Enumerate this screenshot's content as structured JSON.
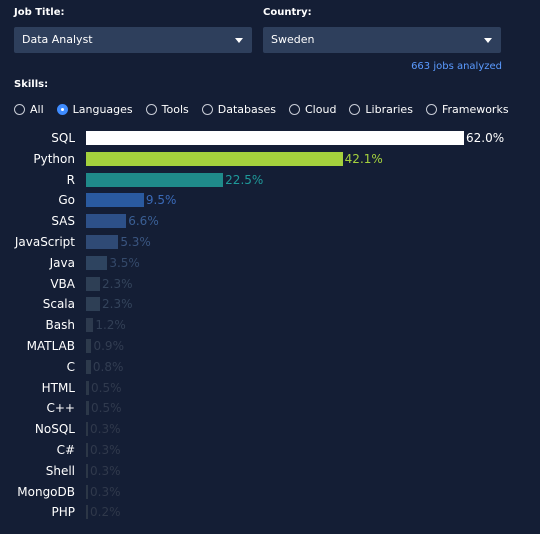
{
  "filters": {
    "job_title_label": "Job Title:",
    "job_title_value": "Data Analyst",
    "country_label": "Country:",
    "country_value": "Sweden",
    "jobs_analyzed": "663 jobs analyzed"
  },
  "skills": {
    "label": "Skills:",
    "options": [
      "All",
      "Languages",
      "Tools",
      "Databases",
      "Cloud",
      "Libraries",
      "Frameworks"
    ],
    "selected": "Languages"
  },
  "chart_data": {
    "type": "bar",
    "orientation": "horizontal",
    "categories": [
      "SQL",
      "Python",
      "R",
      "Go",
      "SAS",
      "JavaScript",
      "Java",
      "VBA",
      "Scala",
      "Bash",
      "MATLAB",
      "C",
      "HTML",
      "C++",
      "NoSQL",
      "C#",
      "Shell",
      "MongoDB",
      "PHP"
    ],
    "values": [
      62.0,
      42.1,
      22.5,
      9.5,
      6.6,
      5.3,
      3.5,
      2.3,
      2.3,
      1.2,
      0.9,
      0.8,
      0.5,
      0.5,
      0.3,
      0.3,
      0.3,
      0.3,
      0.2
    ],
    "labels": [
      "62.0%",
      "42.1%",
      "22.5%",
      "9.5%",
      "6.6%",
      "5.3%",
      "3.5%",
      "2.3%",
      "2.3%",
      "1.2%",
      "0.9%",
      "0.8%",
      "0.5%",
      "0.5%",
      "0.3%",
      "0.3%",
      "0.3%",
      "0.3%",
      "0.2%"
    ],
    "bar_colors": [
      "#ffffff",
      "#a4d13d",
      "#1f8a8a",
      "#2a5aa0",
      "#2d5088",
      "#2f4a75",
      "#2e4460",
      "#2e3f55",
      "#2e3f55",
      "#2d3a4e",
      "#2d3a4c",
      "#2d3a4c",
      "#2c3849",
      "#2c3849",
      "#2c3747",
      "#2c3747",
      "#2c3747",
      "#2c3747",
      "#2c3646"
    ],
    "label_colors": [
      "#ffffff",
      "#a4d13d",
      "#1f9a9a",
      "#3a6ab8",
      "#3a5f95",
      "#3a5580",
      "#34496a",
      "#34445c",
      "#34445c",
      "#323f55",
      "#323d52",
      "#323d52",
      "#303a4e",
      "#303a4e",
      "#30394c",
      "#30394c",
      "#30394c",
      "#30394c",
      "#2f384a"
    ]
  }
}
